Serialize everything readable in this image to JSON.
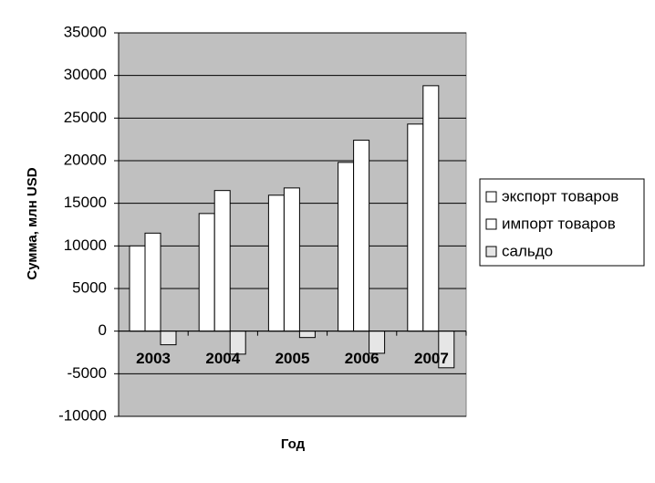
{
  "chart_data": {
    "type": "bar",
    "x_label": "Год",
    "y_label": "Сумма, млн USD",
    "categories": [
      "2003",
      "2004",
      "2005",
      "2006",
      "2007"
    ],
    "series": [
      {
        "name": "экспорт товаров",
        "color": "#ffffff",
        "values": [
          10000,
          13800,
          15950,
          19800,
          24300
        ]
      },
      {
        "name": "импорт товаров",
        "color": "#ffffff",
        "values": [
          11500,
          16500,
          16800,
          22400,
          28800
        ]
      },
      {
        "name": "сальдо",
        "color": "#e6e6e6",
        "values": [
          -1600,
          -2700,
          -750,
          -2600,
          -4300
        ]
      }
    ],
    "ylim": [
      -10000,
      35000
    ],
    "yticks": [
      -10000,
      -5000,
      0,
      5000,
      10000,
      15000,
      20000,
      25000,
      30000,
      35000
    ],
    "grid": true,
    "legend": "right",
    "plot_background": "#c0c0c0"
  }
}
